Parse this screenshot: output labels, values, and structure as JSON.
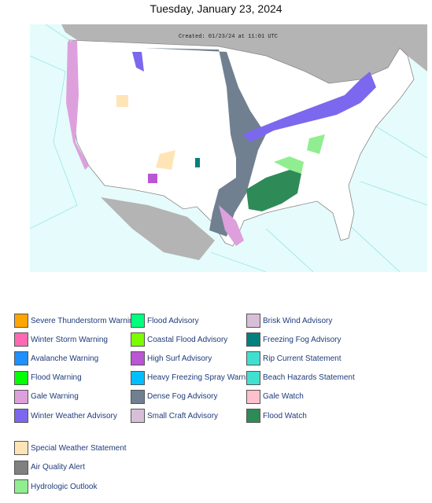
{
  "title": "Tuesday, January 23, 2024",
  "map": {
    "created": "Created: 01/23/24 at 11:01 UTC"
  },
  "legend": {
    "columns": [
      [
        {
          "label": "Severe Thunderstorm Warning",
          "color": "#FFA500"
        },
        {
          "label": "Winter Storm Warning",
          "color": "#FF69B4"
        },
        {
          "label": "Avalanche Warning",
          "color": "#1E90FF"
        },
        {
          "label": "Flood Warning",
          "color": "#00FF00"
        },
        {
          "label": "Gale Warning",
          "color": "#DDA0DD"
        },
        {
          "label": "Winter Weather Advisory",
          "color": "#7B68EE"
        }
      ],
      [
        {
          "label": "Flood Advisory",
          "color": "#00FF7F"
        },
        {
          "label": "Coastal Flood Advisory",
          "color": "#7CFC00"
        },
        {
          "label": "High Surf Advisory",
          "color": "#BA55D3"
        },
        {
          "label": "Heavy Freezing Spray Warning",
          "color": "#00BFFF"
        },
        {
          "label": "Dense Fog Advisory",
          "color": "#708090"
        },
        {
          "label": "Small Craft Advisory",
          "color": "#D8BFD8"
        }
      ],
      [
        {
          "label": "Brisk Wind Advisory",
          "color": "#D8BFD8"
        },
        {
          "label": "Freezing Fog Advisory",
          "color": "#008080"
        },
        {
          "label": "Rip Current Statement",
          "color": "#40E0D0"
        },
        {
          "label": "Beach Hazards Statement",
          "color": "#40E0D0"
        },
        {
          "label": "Gale Watch",
          "color": "#FFC0CB"
        },
        {
          "label": "Flood Watch",
          "color": "#2E8B57"
        }
      ]
    ],
    "extra": [
      {
        "label": "Special Weather Statement",
        "color": "#FFE4B5"
      },
      {
        "label": "Air Quality Alert",
        "color": "#808080"
      },
      {
        "label": "Hydrologic Outlook",
        "color": "#90EE90"
      }
    ]
  }
}
